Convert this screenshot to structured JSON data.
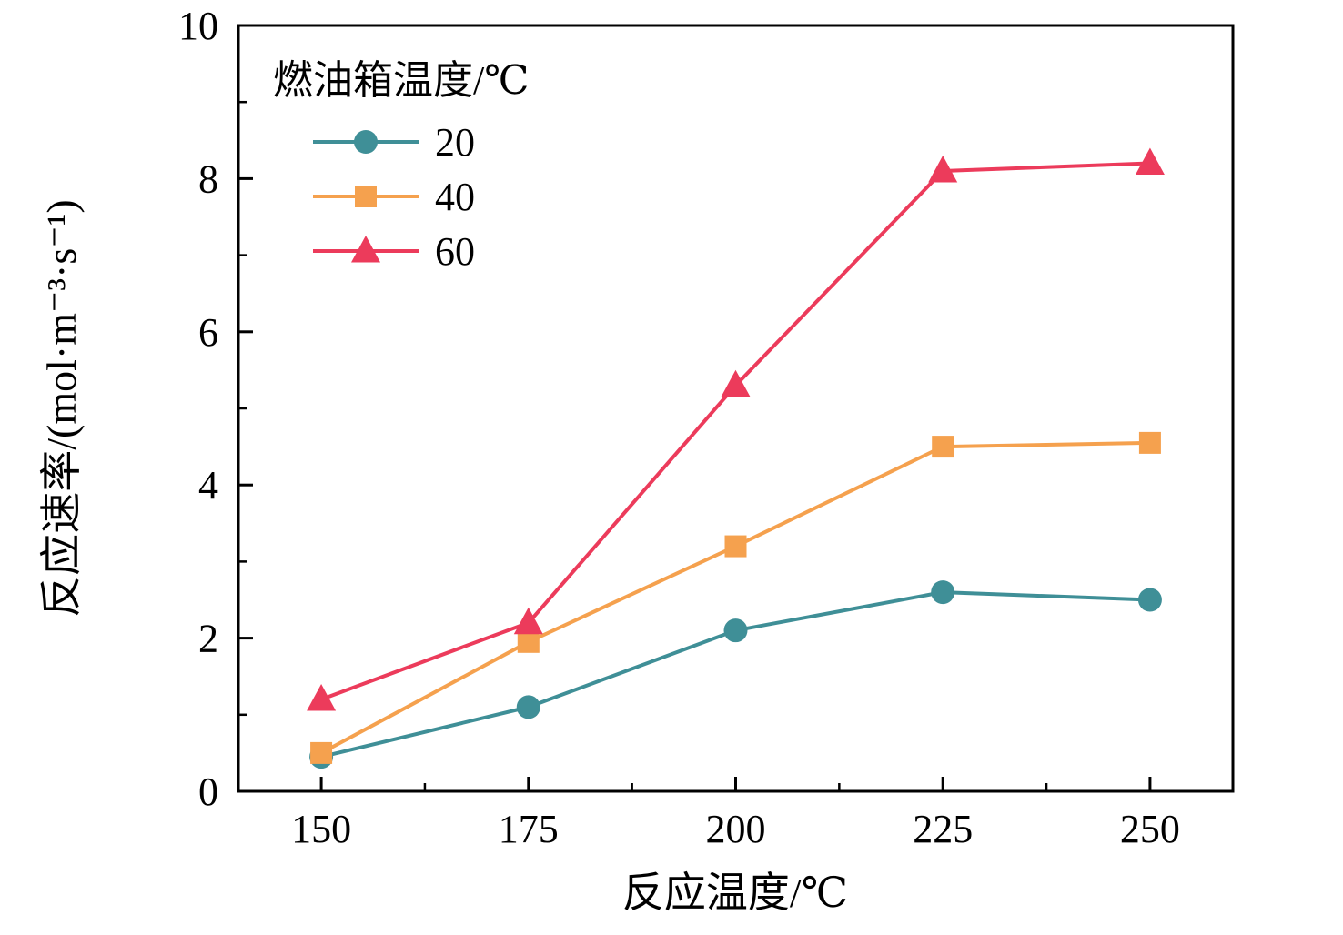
{
  "chart_data": {
    "type": "line",
    "title": "",
    "xlabel": "反应温度/℃",
    "ylabel": "反应速率/(mol·m⁻³·s⁻¹)",
    "legend_title": "燃油箱温度/℃",
    "legend_position": "top-left",
    "grid": false,
    "x": [
      150,
      175,
      200,
      225,
      250
    ],
    "x_ticks": [
      "150",
      "175",
      "200",
      "225",
      "250"
    ],
    "y_ticks": [
      "0",
      "2",
      "4",
      "6",
      "8",
      "10"
    ],
    "xlim": [
      140,
      260
    ],
    "ylim": [
      0,
      10
    ],
    "axis_color": "#000000",
    "series": [
      {
        "name": "20",
        "marker": "circle",
        "color": "#3f8f97",
        "values": [
          0.45,
          1.1,
          2.1,
          2.6,
          2.5
        ]
      },
      {
        "name": "40",
        "marker": "square",
        "color": "#f5a14e",
        "values": [
          0.5,
          1.95,
          3.2,
          4.5,
          4.55
        ]
      },
      {
        "name": "60",
        "marker": "triangle",
        "color": "#ec3b5b",
        "values": [
          1.2,
          2.2,
          5.3,
          8.1,
          8.2
        ]
      }
    ]
  }
}
